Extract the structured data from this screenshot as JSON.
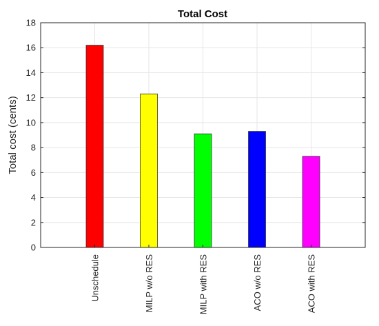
{
  "chart_data": {
    "type": "bar",
    "title": "Total Cost",
    "xlabel": "",
    "ylabel": "Total cost (cents)",
    "categories": [
      "Unschedule",
      "MILP w/o RES",
      "MILP with RES",
      "ACO w/o RES",
      "ACO with RES"
    ],
    "values": [
      16.2,
      12.3,
      9.1,
      9.3,
      7.3
    ],
    "colors": [
      "#ff0000",
      "#ffff00",
      "#00ff00",
      "#0000ff",
      "#ff00ff"
    ],
    "ylim": [
      0,
      18
    ],
    "yticks": [
      0,
      2,
      4,
      6,
      8,
      10,
      12,
      14,
      16,
      18
    ],
    "ytick_labels": [
      "0",
      "2",
      "4",
      "6",
      "8",
      "10",
      "12",
      "14",
      "16",
      "18"
    ],
    "grid": true,
    "legend": "none"
  }
}
